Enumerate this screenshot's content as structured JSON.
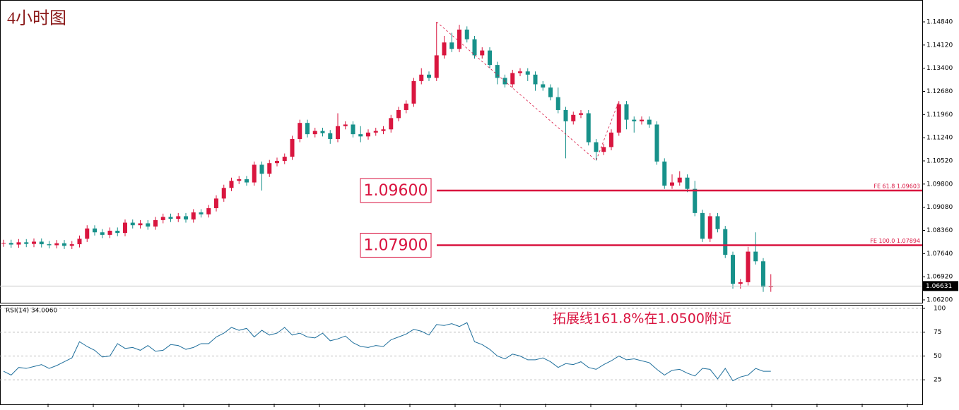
{
  "chart_data": [
    {
      "type": "candlestick",
      "title": "4小时图",
      "up_color": "#d9163f",
      "down_color": "#17918a",
      "ylim": [
        1.0609,
        1.1541
      ],
      "yticks": [
        {
          "value": 1.1484,
          "label": "1.14840"
        },
        {
          "value": 1.1412,
          "label": "1.14120"
        },
        {
          "value": 1.134,
          "label": "1.13400"
        },
        {
          "value": 1.1268,
          "label": "1.12680"
        },
        {
          "value": 1.1196,
          "label": "1.11960"
        },
        {
          "value": 1.1124,
          "label": "1.11240"
        },
        {
          "value": 1.1052,
          "label": "1.10520"
        },
        {
          "value": 1.098,
          "label": "1.09800"
        },
        {
          "value": 1.0908,
          "label": "1.09080"
        },
        {
          "value": 1.0836,
          "label": "1.08360"
        },
        {
          "value": 1.0764,
          "label": "1.07640"
        },
        {
          "value": 1.0692,
          "label": "1.06920"
        },
        {
          "value": 1.062,
          "label": "1.06200"
        }
      ],
      "open": [
        1.0795,
        1.0797,
        1.0792,
        1.0799,
        1.0794,
        1.0801,
        1.0793,
        1.079,
        1.0796,
        1.0788,
        1.0793,
        1.081,
        1.0842,
        1.083,
        1.0822,
        1.0835,
        1.0828,
        1.086,
        1.0852,
        1.0858,
        1.0848,
        1.0868,
        1.0878,
        1.0872,
        1.088,
        1.087,
        1.0892,
        1.0886,
        1.0905,
        1.0935,
        1.0968,
        1.099,
        1.0995,
        1.0985,
        1.104,
        1.1012,
        1.1045,
        1.1052,
        1.1065,
        1.112,
        1.117,
        1.1135,
        1.1145,
        1.1138,
        1.112,
        1.116,
        1.1165,
        1.1135,
        1.1128,
        1.114,
        1.1145,
        1.115,
        1.1185,
        1.121,
        1.123,
        1.13,
        1.132,
        1.131,
        1.138,
        1.142,
        1.14,
        1.146,
        1.143,
        1.138,
        1.1395,
        1.135,
        1.131,
        1.129,
        1.1325,
        1.133,
        1.132,
        1.129,
        1.128,
        1.125,
        1.121,
        1.1175,
        1.1195,
        1.12,
        1.111,
        1.108,
        1.1095,
        1.114,
        1.1228,
        1.118,
        1.1175,
        1.118,
        1.1165,
        1.105,
        1.0975,
        1.0985,
        1.1,
        1.0965,
        1.089,
        1.081,
        1.088,
        1.084,
        1.076,
        1.067,
        1.0675,
        1.077,
        1.074,
        1.066
      ],
      "high": [
        1.0807,
        1.0807,
        1.0809,
        1.0809,
        1.0811,
        1.0811,
        1.0803,
        1.0806,
        1.0806,
        1.0803,
        1.082,
        1.0852,
        1.0852,
        1.084,
        1.0845,
        1.0845,
        1.087,
        1.087,
        1.0868,
        1.0868,
        1.0878,
        1.0888,
        1.0888,
        1.089,
        1.089,
        1.0902,
        1.0902,
        1.0915,
        1.0945,
        1.0978,
        1.1,
        1.1005,
        1.1005,
        1.105,
        1.105,
        1.1055,
        1.1062,
        1.1075,
        1.113,
        1.118,
        1.118,
        1.1155,
        1.1155,
        1.1148,
        1.12,
        1.1175,
        1.1175,
        1.116,
        1.115,
        1.1155,
        1.116,
        1.1195,
        1.122,
        1.124,
        1.131,
        1.134,
        1.133,
        1.1484,
        1.144,
        1.145,
        1.1475,
        1.147,
        1.144,
        1.1405,
        1.1405,
        1.136,
        1.132,
        1.1335,
        1.134,
        1.134,
        1.133,
        1.13,
        1.129,
        1.128,
        1.122,
        1.1205,
        1.121,
        1.121,
        1.112,
        1.1105,
        1.115,
        1.1238,
        1.1238,
        1.119,
        1.119,
        1.119,
        1.1175,
        1.106,
        1.101,
        1.102,
        1.101,
        1.099,
        1.09,
        1.089,
        1.089,
        1.085,
        1.077,
        1.0685,
        1.0785,
        1.083,
        1.075,
        1.07
      ],
      "low": [
        1.0785,
        1.0782,
        1.0782,
        1.0784,
        1.0784,
        1.0783,
        1.078,
        1.078,
        1.0778,
        1.0778,
        1.0783,
        1.08,
        1.082,
        1.0812,
        1.0812,
        1.0818,
        1.0818,
        1.0842,
        1.0842,
        1.0838,
        1.0838,
        1.0858,
        1.0862,
        1.0862,
        1.086,
        1.086,
        1.0876,
        1.0876,
        1.0895,
        1.0925,
        1.0958,
        1.098,
        1.0975,
        1.0975,
        1.096,
        1.1002,
        1.1035,
        1.1042,
        1.1055,
        1.111,
        1.1125,
        1.1125,
        1.1128,
        1.1105,
        1.111,
        1.115,
        1.1125,
        1.111,
        1.1118,
        1.113,
        1.1135,
        1.114,
        1.1175,
        1.12,
        1.122,
        1.129,
        1.13,
        1.13,
        1.137,
        1.139,
        1.139,
        1.142,
        1.137,
        1.137,
        1.134,
        1.129,
        1.128,
        1.128,
        1.1315,
        1.13,
        1.127,
        1.127,
        1.124,
        1.12,
        1.106,
        1.1165,
        1.1185,
        1.11,
        1.1053,
        1.107,
        1.1085,
        1.113,
        1.115,
        1.114,
        1.1165,
        1.1155,
        1.104,
        1.0965,
        1.0965,
        1.0975,
        1.0955,
        1.088,
        1.08,
        1.08,
        1.083,
        1.075,
        1.0655,
        1.0655,
        1.0665,
        1.073,
        1.0645,
        1.0645
      ],
      "close": [
        1.0797,
        1.0792,
        1.0799,
        1.0794,
        1.0801,
        1.0793,
        1.079,
        1.0796,
        1.0788,
        1.0793,
        1.081,
        1.0842,
        1.083,
        1.0822,
        1.0835,
        1.0828,
        1.086,
        1.0852,
        1.0858,
        1.0848,
        1.0868,
        1.0878,
        1.0872,
        1.088,
        1.087,
        1.0892,
        1.0886,
        1.0905,
        1.0935,
        1.0968,
        1.099,
        1.0995,
        1.0985,
        1.104,
        1.1012,
        1.1045,
        1.1052,
        1.1065,
        1.112,
        1.117,
        1.1135,
        1.1145,
        1.1138,
        1.112,
        1.116,
        1.1165,
        1.1135,
        1.1128,
        1.114,
        1.1145,
        1.115,
        1.1185,
        1.121,
        1.123,
        1.13,
        1.132,
        1.131,
        1.138,
        1.142,
        1.14,
        1.146,
        1.143,
        1.138,
        1.1395,
        1.135,
        1.131,
        1.129,
        1.1325,
        1.133,
        1.132,
        1.129,
        1.128,
        1.125,
        1.121,
        1.1175,
        1.1195,
        1.12,
        1.111,
        1.108,
        1.1095,
        1.114,
        1.1228,
        1.118,
        1.1175,
        1.118,
        1.1165,
        1.105,
        1.0975,
        1.0985,
        1.1,
        1.0965,
        1.089,
        1.081,
        1.088,
        1.084,
        1.076,
        1.067,
        1.0675,
        1.077,
        1.074,
        1.066,
        1.06631
      ],
      "hlines": [
        {
          "value": 1.096,
          "label": "1.09600",
          "note": "FE 61.8  1.09603"
        },
        {
          "value": 1.079,
          "label": "1.07900",
          "note": "FE 100.0  1.07894"
        }
      ],
      "line_color": "#d9133f"
    },
    {
      "type": "line",
      "annotation": "拓展线161.8%在1.0500附近",
      "ylim": [
        0,
        103.7
      ],
      "yticks": [
        25,
        50,
        75,
        100
      ],
      "grid": true,
      "series": [
        {
          "name": "RSI(14) 34.0060",
          "color": "#1f6f9c",
          "values": [
            34,
            30,
            38,
            37,
            39,
            41,
            37,
            40,
            44,
            48,
            65,
            60,
            56,
            49,
            50,
            63,
            58,
            59,
            56,
            61,
            55,
            56,
            62,
            61,
            57,
            59,
            63,
            63,
            70,
            74,
            80,
            77,
            79,
            70,
            77,
            72,
            74,
            80,
            72,
            74,
            70,
            69,
            74,
            66,
            68,
            71,
            64,
            60,
            59,
            61,
            60,
            67,
            70,
            73,
            78,
            76,
            72,
            83,
            82,
            84,
            81,
            85,
            65,
            62,
            57,
            50,
            47,
            52,
            50,
            46,
            46,
            48,
            44,
            38,
            42,
            41,
            44,
            38,
            36,
            41,
            45,
            50,
            46,
            47,
            45,
            43,
            36,
            30,
            35,
            36,
            32,
            29,
            37,
            36,
            26,
            37,
            24,
            28,
            30,
            37,
            34,
            34.006
          ]
        }
      ]
    }
  ]
}
